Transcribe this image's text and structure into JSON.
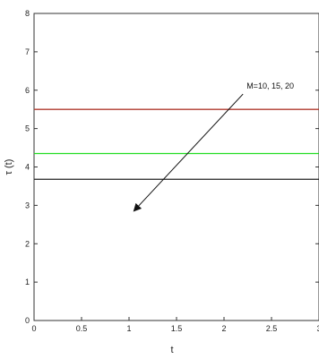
{
  "chart_data": {
    "type": "line",
    "title": "",
    "xlabel": "t",
    "ylabel": "τ (t)",
    "xlim": [
      0,
      3
    ],
    "ylim": [
      0,
      8
    ],
    "x_ticks": [
      "0",
      "0.5",
      "1",
      "1.5",
      "2",
      "2.5",
      "3"
    ],
    "y_ticks": [
      "0",
      "1",
      "2",
      "3",
      "4",
      "5",
      "6",
      "7",
      "8"
    ],
    "grid": false,
    "legend": "none",
    "series": [
      {
        "x": [
          0,
          3
        ],
        "values": [
          5.5,
          5.5
        ],
        "color": "#b03a2e"
      },
      {
        "x": [
          0,
          3
        ],
        "values": [
          4.35,
          4.35
        ],
        "color": "#22dd22"
      },
      {
        "x": [
          0,
          3
        ],
        "values": [
          3.68,
          3.68
        ],
        "color": "#222222"
      }
    ],
    "annotation": {
      "text": "M=10, 15, 20",
      "arrow_from": [
        2.2,
        5.9
      ],
      "arrow_to": [
        1.05,
        2.85
      ]
    }
  }
}
